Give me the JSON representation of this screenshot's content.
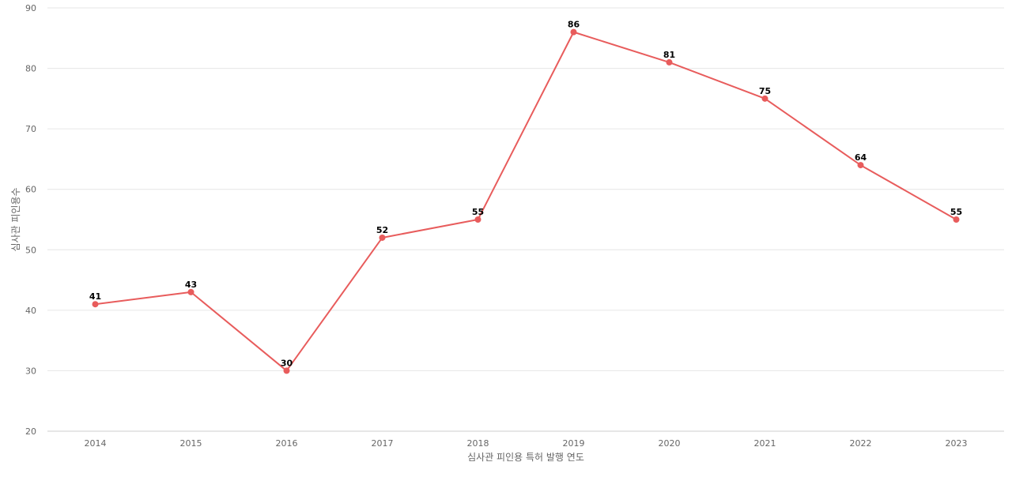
{
  "chart_data": {
    "type": "line",
    "title": "",
    "xlabel": "심사관 피인용 특허 발행 연도",
    "ylabel": "심사관 피인용수",
    "categories": [
      "2014",
      "2015",
      "2016",
      "2017",
      "2018",
      "2019",
      "2020",
      "2021",
      "2022",
      "2023"
    ],
    "series": [
      {
        "values": [
          41,
          43,
          30,
          52,
          55,
          86,
          81,
          75,
          64,
          55
        ],
        "color": "#e85c5c"
      }
    ],
    "ylim": [
      20,
      90
    ],
    "yticks": [
      20,
      30,
      40,
      50,
      60,
      70,
      80,
      90
    ],
    "grid": true,
    "data_labels": true
  }
}
